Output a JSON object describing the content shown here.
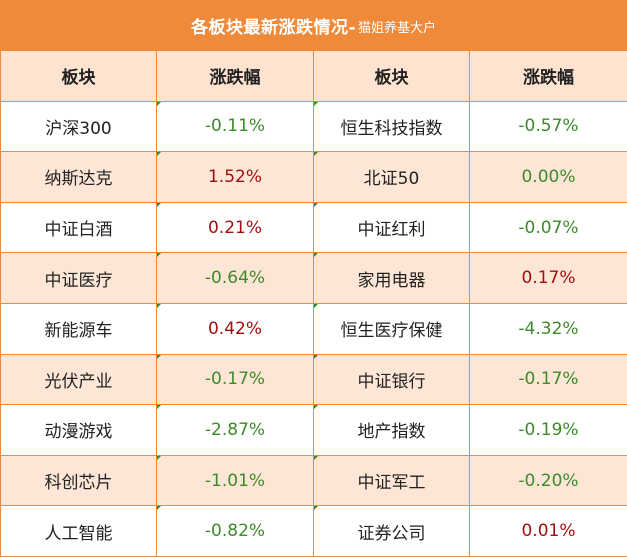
{
  "title": {
    "main": "各板块最新涨跌情况-",
    "sub": "猫姐养基大户"
  },
  "headers": [
    "板块",
    "涨跌幅",
    "板块",
    "涨跌幅"
  ],
  "rows": [
    {
      "left_name": "沪深300",
      "left_change": "-0.11%",
      "right_name": "恒生科技指数",
      "right_change": "-0.57%"
    },
    {
      "left_name": "纳斯达克",
      "left_change": "1.52%",
      "right_name": "北证50",
      "right_change": "0.00%"
    },
    {
      "left_name": "中证白酒",
      "left_change": "0.21%",
      "right_name": "中证红利",
      "right_change": "-0.07%"
    },
    {
      "left_name": "中证医疗",
      "left_change": "-0.64%",
      "right_name": "家用电器",
      "right_change": "0.17%"
    },
    {
      "left_name": "新能源车",
      "left_change": "0.42%",
      "right_name": "恒生医疗保健",
      "right_change": "-4.32%"
    },
    {
      "left_name": "光伏产业",
      "left_change": "-0.17%",
      "right_name": "中证银行",
      "right_change": "-0.17%"
    },
    {
      "left_name": "动漫游戏",
      "left_change": "-2.87%",
      "right_name": "地产指数",
      "right_change": "-0.19%"
    },
    {
      "left_name": "科创芯片",
      "left_change": "-1.01%",
      "right_name": "中证军工",
      "right_change": "-0.20%"
    },
    {
      "left_name": "人工智能",
      "left_change": "-0.82%",
      "right_name": "证券公司",
      "right_change": "0.01%"
    }
  ],
  "colors": {
    "header_bar": "#ee8a3a",
    "header_row": "#fde3d0",
    "stripe": "#fde6d5",
    "negative": "#3d8a2a",
    "positive": "#a01010"
  }
}
